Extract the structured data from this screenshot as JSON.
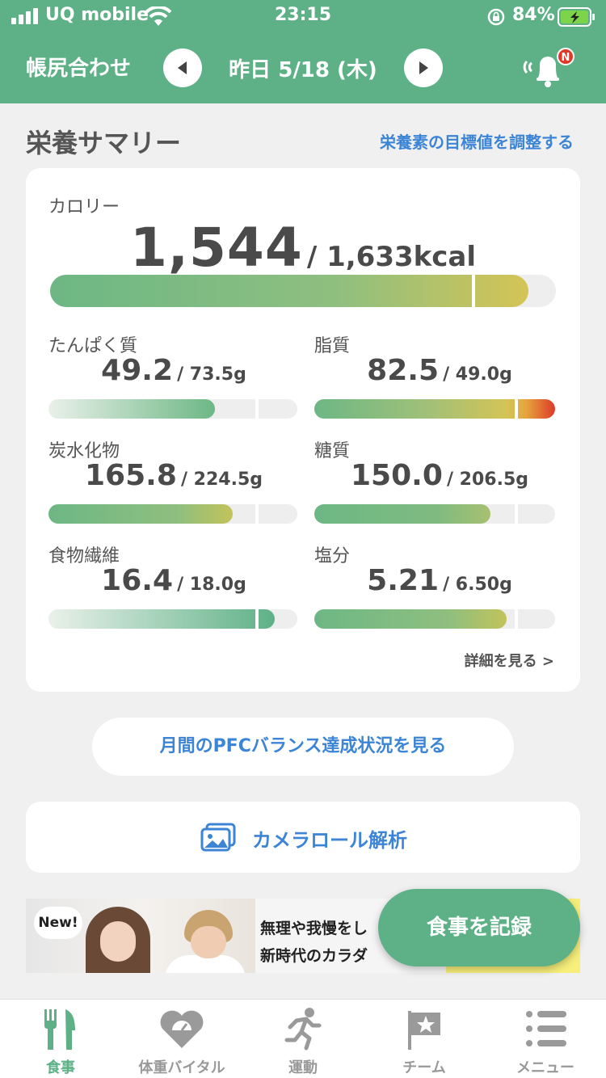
{
  "status": {
    "carrier": "UQ mobile",
    "time": "23:15",
    "battery": "84%"
  },
  "header": {
    "left_button": "帳尻合わせ",
    "date": "昨日 5/18 (木)",
    "bell_badge": "N"
  },
  "summary": {
    "title": "栄養サマリー",
    "adjust_link": "栄養素の目標値を調整する",
    "calorie": {
      "label": "カロリー",
      "value": "1,544",
      "target": "/ 1,633kcal",
      "progress": 0.945
    },
    "nutrients": [
      {
        "name": "たんぱく質",
        "value": "49.2",
        "target": "/ 73.5g",
        "progress": 0.67
      },
      {
        "name": "脂質",
        "value": "82.5",
        "target": "/ 49.0g",
        "progress": 1.0
      },
      {
        "name": "炭水化物",
        "value": "165.8",
        "target": "/ 224.5g",
        "progress": 0.74
      },
      {
        "name": "糖質",
        "value": "150.0",
        "target": "/ 206.5g",
        "progress": 0.73
      },
      {
        "name": "食物繊維",
        "value": "16.4",
        "target": "/ 18.0g",
        "progress": 0.91
      },
      {
        "name": "塩分",
        "value": "5.21",
        "target": "/ 6.50g",
        "progress": 0.8
      }
    ],
    "detail_link": "詳細を見る >"
  },
  "pfc_button": "月間のPFCバランス達成状況を見る",
  "camera_button": "カメラロール解析",
  "ad": {
    "badge": "New!",
    "line1": "無理や我慢をし",
    "line2": "新時代のカラダ"
  },
  "fab": "食事を記録",
  "tabs": [
    {
      "label": "食事",
      "icon": "fork-knife-icon",
      "active": true
    },
    {
      "label": "体重バイタル",
      "icon": "heart-scale-icon",
      "active": false
    },
    {
      "label": "運動",
      "icon": "running-icon",
      "active": false
    },
    {
      "label": "チーム",
      "icon": "flag-star-icon",
      "active": false
    },
    {
      "label": "メニュー",
      "icon": "list-icon",
      "active": false
    }
  ],
  "colors": {
    "brand_green": "#5eb187",
    "link_blue": "#3c85d6",
    "warning_yellow": "#d4c456",
    "over_red": "#de3a2a"
  }
}
